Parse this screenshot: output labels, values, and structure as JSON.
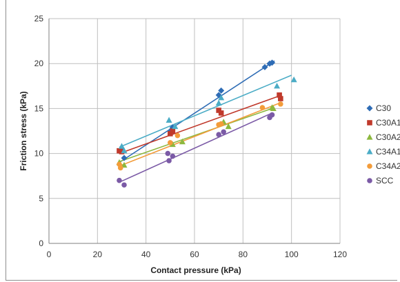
{
  "chart_data": {
    "type": "scatter",
    "xlabel": "Contact pressure (kPa)",
    "ylabel": "Friction stress (kPa)",
    "xlim": [
      0,
      120
    ],
    "ylim": [
      0,
      25
    ],
    "x_ticks": [
      "0",
      "20",
      "40",
      "60",
      "80",
      "100",
      "120"
    ],
    "y_ticks": [
      "0",
      "5",
      "10",
      "15",
      "20",
      "25"
    ],
    "grid": true,
    "legend_position": "right",
    "series": [
      {
        "name": "C30",
        "marker": "diamond",
        "color": "#2e6cb5",
        "points": [
          [
            30,
            10.4
          ],
          [
            31,
            9.5
          ],
          [
            50,
            12.5
          ],
          [
            51,
            12.9
          ],
          [
            70,
            16.5
          ],
          [
            71,
            17.0
          ],
          [
            89,
            19.6
          ],
          [
            91,
            20.0
          ],
          [
            92,
            20.1
          ]
        ],
        "trendline": [
          [
            29,
            9.0
          ],
          [
            93,
            20.3
          ]
        ]
      },
      {
        "name": "C30A1",
        "marker": "square",
        "color": "#c0392b",
        "points": [
          [
            29,
            10.3
          ],
          [
            30,
            10.2
          ],
          [
            50,
            12.2
          ],
          [
            51,
            12.5
          ],
          [
            70,
            14.8
          ],
          [
            71,
            14.5
          ],
          [
            95,
            16.5
          ],
          [
            95.5,
            16.1
          ]
        ],
        "trendline": [
          [
            29,
            10.0
          ],
          [
            96,
            16.5
          ]
        ]
      },
      {
        "name": "C30A2",
        "marker": "triangle",
        "color": "#8cb83e",
        "points": [
          [
            29,
            9.0
          ],
          [
            31,
            8.7
          ],
          [
            51,
            11.0
          ],
          [
            55,
            11.3
          ],
          [
            72,
            13.5
          ],
          [
            74,
            13.0
          ],
          [
            92,
            15.1
          ],
          [
            92.5,
            15.0
          ]
        ],
        "trendline": [
          [
            29,
            9.1
          ],
          [
            93,
            15.1
          ]
        ]
      },
      {
        "name": "C34A1",
        "marker": "triangle",
        "color": "#4bacc6",
        "points": [
          [
            30,
            10.8
          ],
          [
            31,
            10.3
          ],
          [
            49.5,
            13.7
          ],
          [
            52,
            13.0
          ],
          [
            70,
            15.6
          ],
          [
            71,
            16.2
          ],
          [
            94,
            17.5
          ],
          [
            101,
            18.2
          ]
        ],
        "trendline": [
          [
            29,
            10.7
          ],
          [
            100,
            18.7
          ]
        ]
      },
      {
        "name": "C34A2",
        "marker": "circle",
        "color": "#f39c3a",
        "points": [
          [
            29,
            8.8
          ],
          [
            29.5,
            8.4
          ],
          [
            50,
            11.2
          ],
          [
            53,
            12.0
          ],
          [
            70,
            13.2
          ],
          [
            71,
            13.3
          ],
          [
            88,
            15.1
          ],
          [
            95.5,
            15.5
          ]
        ],
        "trendline": [
          [
            29,
            8.6
          ],
          [
            96,
            15.7
          ]
        ]
      },
      {
        "name": "SCC",
        "marker": "circle",
        "color": "#7b5aa6",
        "points": [
          [
            29,
            7.0
          ],
          [
            31,
            6.5
          ],
          [
            49,
            10.0
          ],
          [
            49.5,
            9.2
          ],
          [
            51,
            9.7
          ],
          [
            70,
            12.1
          ],
          [
            72,
            12.4
          ],
          [
            91,
            14.0
          ],
          [
            92,
            14.3
          ]
        ],
        "trendline": [
          [
            29,
            6.8
          ],
          [
            92,
            14.5
          ]
        ]
      }
    ]
  }
}
